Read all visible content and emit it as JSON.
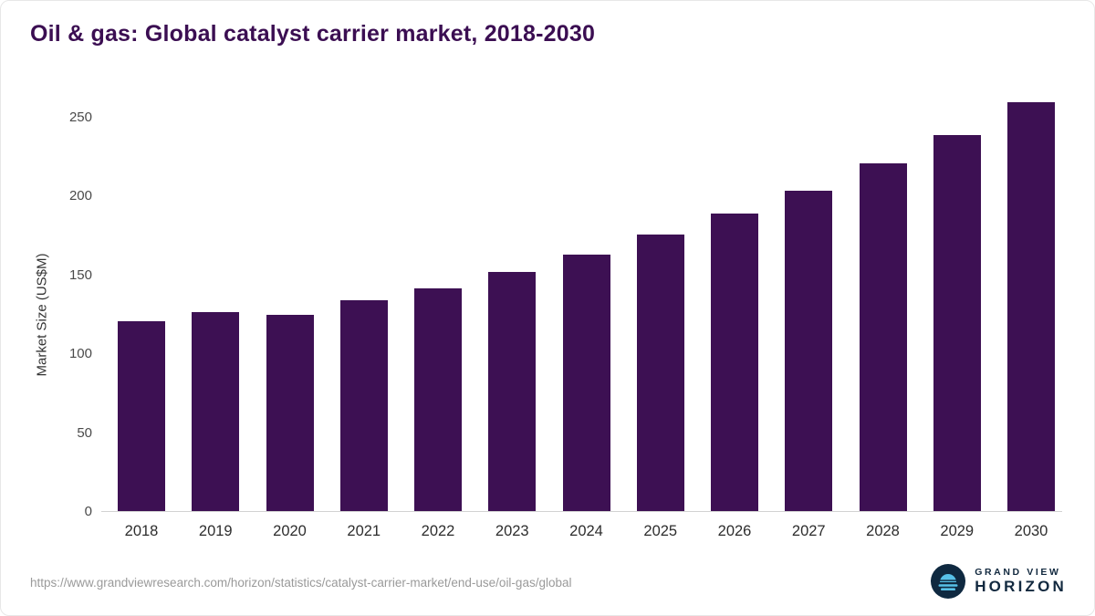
{
  "title": "Oil & gas: Global catalyst carrier market, 2018-2030",
  "footer": {
    "source_url": "https://www.grandviewresearch.com/horizon/statistics/catalyst-carrier-market/end-use/oil-gas/global",
    "logo_line1": "GRAND VIEW",
    "logo_line2": "HORIZON"
  },
  "colors": {
    "bar": "#3d1053",
    "title": "#3b0e52",
    "axis_text": "#4a4a4a",
    "footer_text": "#9a9a9a",
    "logo_navy": "#0f2940",
    "logo_blue": "#57c1e8"
  },
  "chart_data": {
    "type": "bar",
    "title": "Oil & gas: Global catalyst carrier market, 2018-2030",
    "categories": [
      "2018",
      "2019",
      "2020",
      "2021",
      "2022",
      "2023",
      "2024",
      "2025",
      "2026",
      "2027",
      "2028",
      "2029",
      "2030"
    ],
    "values": [
      121,
      127,
      125,
      134,
      142,
      152,
      163,
      176,
      189,
      204,
      221,
      239,
      260
    ],
    "xlabel": "",
    "ylabel": "Market Size (US$M)",
    "ylim": [
      0,
      260
    ],
    "yticks": [
      0,
      50,
      100,
      150,
      200,
      250
    ],
    "grid": false,
    "legend": "none",
    "bar_color": "#3d1053"
  }
}
